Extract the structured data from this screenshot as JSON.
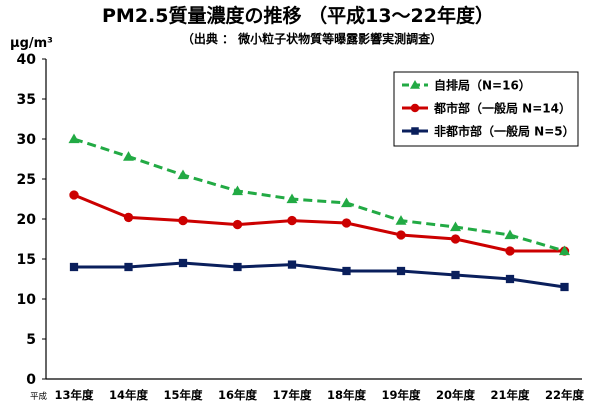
{
  "chart_data": {
    "type": "line",
    "title": "PM2.5質量濃度の推移 （平成13～22年度）",
    "subtitle": "（出典 ： 微小粒子状物質等曝露影響実測調査）",
    "ylabel": "μg/m³",
    "x_prefix": "平成",
    "categories": [
      "13年度",
      "14年度",
      "15年度",
      "16年度",
      "17年度",
      "18年度",
      "19年度",
      "20年度",
      "21年度",
      "22年度"
    ],
    "ylim": [
      0,
      40
    ],
    "yticks": [
      0,
      5,
      10,
      15,
      20,
      25,
      30,
      35,
      40
    ],
    "grid": false,
    "legend_position": "top-right",
    "series": [
      {
        "name": "自排局（N=16）",
        "color": "#22aa44",
        "marker": "triangle",
        "dashed": true,
        "values": [
          30,
          27.8,
          25.5,
          23.5,
          22.5,
          22,
          19.8,
          19,
          18,
          16
        ]
      },
      {
        "name": "都市部（一般局 N=14）",
        "color": "#cc0000",
        "marker": "circle",
        "dashed": false,
        "values": [
          23,
          20.2,
          19.8,
          19.3,
          19.8,
          19.5,
          18,
          17.5,
          16,
          16
        ]
      },
      {
        "name": "非都市部（一般局 N=5）",
        "color": "#0a1f5c",
        "marker": "square",
        "dashed": false,
        "values": [
          14,
          14,
          14.5,
          14,
          14.3,
          13.5,
          13.5,
          13,
          12.5,
          11.5
        ]
      }
    ]
  }
}
